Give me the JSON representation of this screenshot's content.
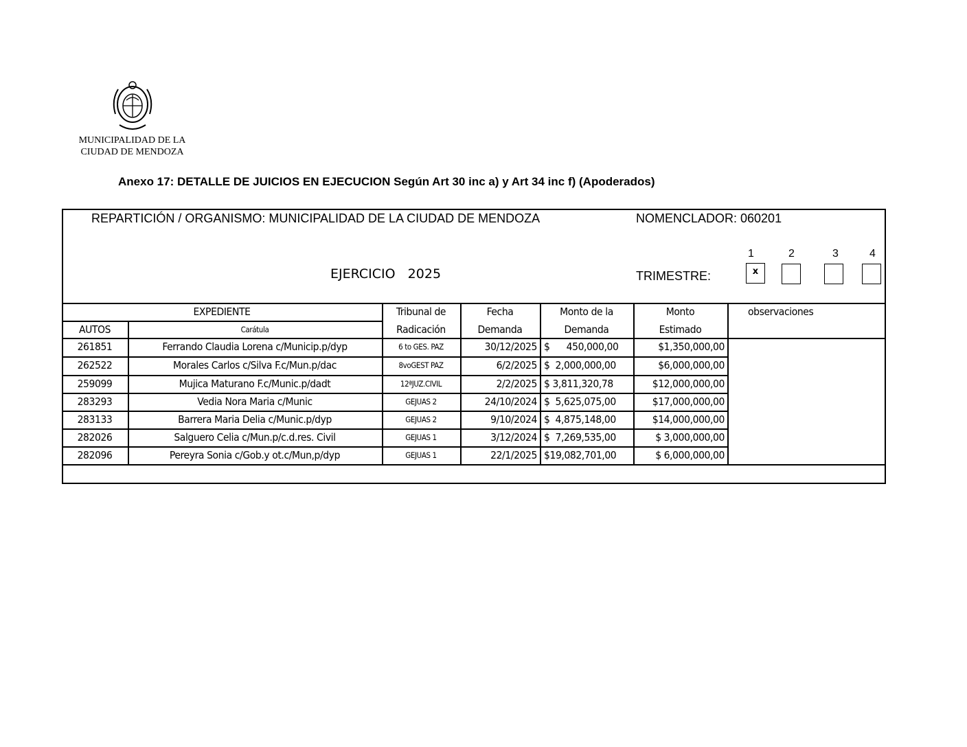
{
  "logo": {
    "text_line1": "MUNICIPALIDAD DE LA",
    "text_line2": "CIUDAD DE MENDOZA",
    "icon": "coat-of-arms-seal"
  },
  "title": "Anexo 17:  DETALLE DE JUICIOS EN EJECUCION Según Art 30 inc a) y Art 34 inc f) (Apoderados)",
  "header": {
    "reparticion": "REPARTICIÓN / ORGANISMO: MUNICIPALIDAD DE LA CIUDAD DE MENDOZA",
    "nomenclador": "NOMENCLADOR: 060201",
    "ejercicio": "EJERCICIO   2025",
    "trimestre_label": "TRIMESTRE:",
    "trimestres": [
      {
        "label": "1",
        "mark": "x"
      },
      {
        "label": "2",
        "mark": ""
      },
      {
        "label": "3",
        "mark": ""
      },
      {
        "label": "4",
        "mark": ""
      }
    ]
  },
  "table": {
    "group_header": "EXPEDIENTE",
    "columns": {
      "autos": "AUTOS",
      "caratula": "Carátula",
      "tribunal_1": "Tribunal de",
      "tribunal_2": "Radicación",
      "fecha_1": "Fecha",
      "fecha_2": "Demanda",
      "monto_1": "Monto de la",
      "monto_2": "Demanda",
      "estimado_1": "Monto",
      "estimado_2": "Estimado",
      "observaciones": "observaciones"
    },
    "rows": [
      {
        "autos": "261851",
        "caratula": "Ferrando Claudia Lorena c/Municip.p/dyp",
        "tribunal": "6 to GES. PAZ",
        "fecha": "30/12/2025",
        "monto": "$      450,000,00",
        "estimado": "$1,350,000,00"
      },
      {
        "autos": "262522",
        "caratula": "Morales Carlos c/Silva F.c/Mun.p/dac",
        "tribunal": "8voGEST PAZ",
        "fecha": "6/2/2025",
        "monto": "$  2,000,000,00",
        "estimado": "$6,000,000,00"
      },
      {
        "autos": "259099",
        "caratula": "Mujica Maturano F.c/Munic.p/dadt",
        "tribunal": "12ªJUZ.CIVIL",
        "fecha": "2/2/2025",
        "monto": "$ 3,811,320,78",
        "estimado": "$12,000,000,00"
      },
      {
        "autos": "283293",
        "caratula": "Vedia Nora Maria c/Munic",
        "tribunal": "GEJUAS 2",
        "fecha": "24/10/2024",
        "monto": "$  5,625,075,00",
        "estimado": "$17,000,000,00"
      },
      {
        "autos": "283133",
        "caratula": "Barrera Maria Delia c/Munic.p/dyp",
        "tribunal": "GEJUAS 2",
        "fecha": "9/10/2024",
        "monto": "$  4,875,148,00",
        "estimado": "$14,000,000,00"
      },
      {
        "autos": "282026",
        "caratula": "Salguero Celia c/Mun.p/c.d.res. Civil",
        "tribunal": "GEJUAS 1",
        "fecha": "3/12/2024",
        "monto": "$  7,269,535,00",
        "estimado": "$ 3,000,000,00"
      },
      {
        "autos": "282096",
        "caratula": "Pereyra Sonia c/Gob.y ot.c/Mun,p/dyp",
        "tribunal": "GEJUAS 1",
        "fecha": "22/1/2025",
        "monto": "$19,082,701,00",
        "estimado": "$ 6,000,000,00"
      }
    ]
  }
}
